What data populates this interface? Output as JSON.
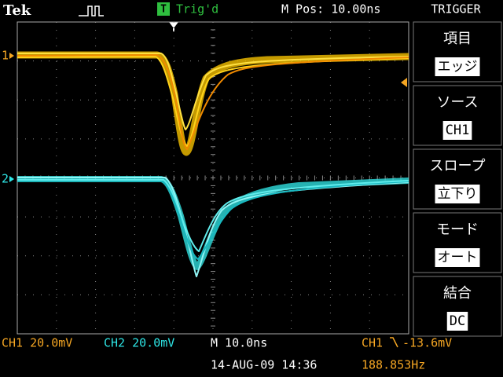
{
  "header": {
    "brand": "Tek",
    "trigger_icon": "T",
    "trigger_state": "Trig'd",
    "position": "M Pos: 10.00ns",
    "menu_title": "TRIGGER"
  },
  "channels": [
    {
      "marker": "1"
    },
    {
      "marker": "2"
    }
  ],
  "menu": [
    {
      "label": "項目",
      "value": "エッジ"
    },
    {
      "label": "ソース",
      "value": "CH1"
    },
    {
      "label": "スロープ",
      "value": "立下り"
    },
    {
      "label": "モード",
      "value": "オート"
    },
    {
      "label": "結合",
      "value": "DC"
    }
  ],
  "status": {
    "ch1": "CH1 20.0mV",
    "ch2": "CH2 20.0mV",
    "timebase": "M 10.0ns",
    "trigger_source": "CH1",
    "trigger_level": "-13.6mV",
    "datetime": "14-AUG-09 14:36",
    "frequency": "188.853Hz"
  }
}
